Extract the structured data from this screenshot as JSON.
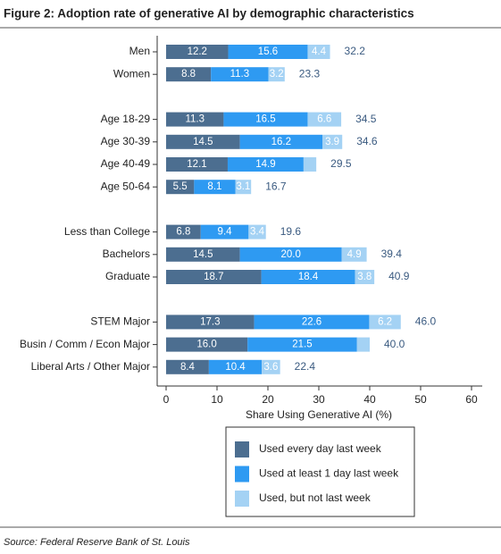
{
  "chart_data": {
    "type": "stacked-bar",
    "title": "Figure 2: Adoption rate of generative AI by demographic characteristics",
    "x_label": "Share Using Generative AI (%)",
    "source": "Source: Federal Reserve Bank of St. Louis",
    "categories": [
      "Men",
      "Women",
      null,
      "Age 18-29",
      "Age 30-39",
      "Age 40-49",
      "Age 50-64",
      null,
      "Less than College",
      "Bachelors",
      "Graduate",
      null,
      "STEM Major",
      "Busin / Comm / Econ Major",
      "Liberal Arts / Other Major"
    ],
    "series": [
      {
        "name": "Used every day last week",
        "color": "#4c6e90",
        "values": [
          12.2,
          8.8,
          null,
          11.3,
          14.5,
          12.1,
          5.5,
          null,
          6.8,
          14.5,
          18.7,
          null,
          17.3,
          16.0,
          8.4
        ],
        "value_labels": [
          "12.2",
          "8.8",
          null,
          "11.3",
          "14.5",
          "12.1",
          "5.5",
          null,
          "6.8",
          "14.5",
          "18.7",
          null,
          "17.3",
          "16.0",
          "8.4"
        ]
      },
      {
        "name": "Used at least 1 day last week",
        "color": "#2e9af2",
        "values": [
          15.6,
          11.3,
          null,
          16.5,
          16.2,
          14.9,
          8.1,
          null,
          9.4,
          20.0,
          18.4,
          null,
          22.6,
          21.5,
          10.4
        ],
        "value_labels": [
          "15.6",
          "11.3",
          null,
          "16.5",
          "16.2",
          "14.9",
          "8.1",
          null,
          "9.4",
          "20.0",
          "18.4",
          null,
          "22.6",
          "21.5",
          "10.4"
        ]
      },
      {
        "name": "Used, but not last week",
        "color": "#a4d2f4",
        "values": [
          4.4,
          3.2,
          null,
          6.6,
          3.9,
          2.5,
          3.1,
          null,
          3.4,
          4.9,
          3.8,
          null,
          6.2,
          2.5,
          3.6
        ],
        "value_labels": [
          "4.4",
          "3.2",
          null,
          "6.6",
          "3.9",
          null,
          "3.1",
          null,
          "3.4",
          "4.9",
          "3.8",
          null,
          "6.2",
          null,
          "3.6"
        ]
      }
    ],
    "totals": [
      {
        "value": 32.2,
        "label": "32.2"
      },
      {
        "value": 23.3,
        "label": "23.3"
      },
      null,
      {
        "value": 34.5,
        "label": "34.5"
      },
      {
        "value": 34.6,
        "label": "34.6"
      },
      {
        "value": 29.5,
        "label": "29.5"
      },
      {
        "value": 16.7,
        "label": "16.7"
      },
      null,
      {
        "value": 19.6,
        "label": "19.6"
      },
      {
        "value": 39.4,
        "label": "39.4"
      },
      {
        "value": 40.9,
        "label": "40.9"
      },
      null,
      {
        "value": 46.0,
        "label": "46.0"
      },
      {
        "value": 40.0,
        "label": "40.0"
      },
      {
        "value": 22.4,
        "label": "22.4"
      }
    ],
    "xlim": [
      0,
      60
    ],
    "xticks": [
      0,
      10,
      20,
      30,
      40,
      50,
      60
    ],
    "legend": "bottom"
  }
}
